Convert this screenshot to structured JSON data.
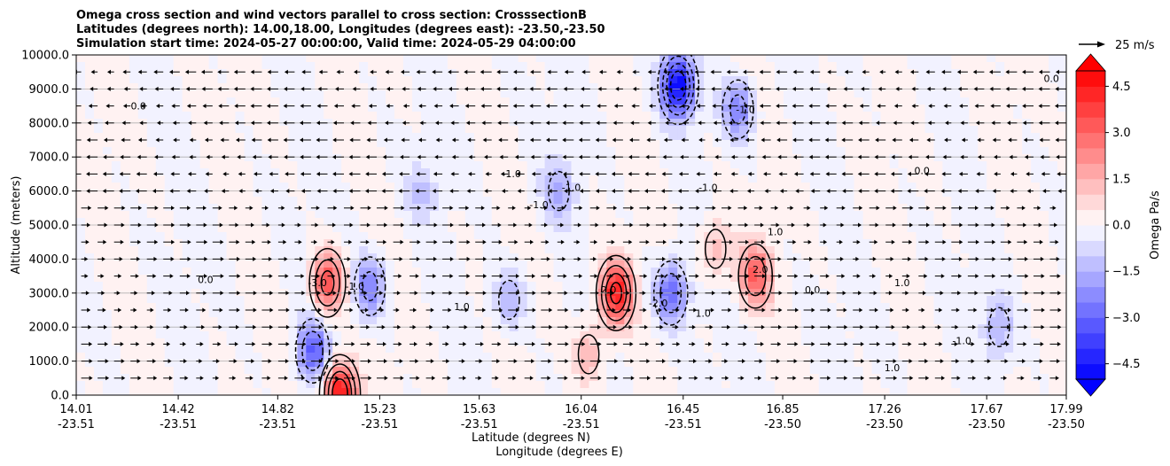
{
  "chart_data": {
    "type": "heatmap",
    "title": [
      "Omega cross section and wind vectors parallel to cross section: CrosssectionB",
      "Latitudes (degrees north): 14.00,18.00, Longitudes (degrees east): -23.50,-23.50",
      "Simulation start time: 2024-05-27 00:00:00, Valid time: 2024-05-29 04:00:00"
    ],
    "xlabel": "Latitude (degrees N)",
    "xlabel2": "Longitude (degrees E)",
    "ylabel": "Altitude (meters)",
    "xlim": [
      14.01,
      17.99
    ],
    "ylim": [
      0,
      10000
    ],
    "grid": "horizontal",
    "x_ticks": [
      {
        "lat": "14.01",
        "lon": "-23.51",
        "value": 14.01
      },
      {
        "lat": "14.42",
        "lon": "-23.51",
        "value": 14.42
      },
      {
        "lat": "14.82",
        "lon": "-23.51",
        "value": 14.82
      },
      {
        "lat": "15.23",
        "lon": "-23.51",
        "value": 15.23
      },
      {
        "lat": "15.63",
        "lon": "-23.51",
        "value": 15.63
      },
      {
        "lat": "16.04",
        "lon": "-23.51",
        "value": 16.04
      },
      {
        "lat": "16.45",
        "lon": "-23.51",
        "value": 16.45
      },
      {
        "lat": "16.85",
        "lon": "-23.50",
        "value": 16.85
      },
      {
        "lat": "17.26",
        "lon": "-23.50",
        "value": 17.26
      },
      {
        "lat": "17.67",
        "lon": "-23.50",
        "value": 17.67
      },
      {
        "lat": "17.99",
        "lon": "-23.50",
        "value": 17.99
      }
    ],
    "y_ticks": [
      {
        "label": "10000.0",
        "value": 10000
      },
      {
        "label": "9000.0",
        "value": 9000
      },
      {
        "label": "8000.0",
        "value": 8000
      },
      {
        "label": "7000.0",
        "value": 7000
      },
      {
        "label": "6000.0",
        "value": 6000
      },
      {
        "label": "5000.0",
        "value": 5000
      },
      {
        "label": "4000.0",
        "value": 4000
      },
      {
        "label": "3000.0",
        "value": 3000
      },
      {
        "label": "2000.0",
        "value": 2000
      },
      {
        "label": "1000.0",
        "value": 1000
      },
      {
        "label": "0.0",
        "value": 0
      }
    ],
    "colorbar": {
      "label": "Omega Pa/s",
      "range": [
        -5,
        5
      ],
      "levels": 20,
      "low_color": "#0000ff",
      "high_color": "#ff0000",
      "mid_color": "#ffffff",
      "ticks": [
        {
          "label": "4.5",
          "value": 4.5
        },
        {
          "label": "3.0",
          "value": 3.0
        },
        {
          "label": "1.5",
          "value": 1.5
        },
        {
          "label": "0.0",
          "value": 0.0
        },
        {
          "label": "−1.5",
          "value": -1.5
        },
        {
          "label": "−3.0",
          "value": -3.0
        },
        {
          "label": "−4.5",
          "value": -4.5
        }
      ]
    },
    "vector_key": {
      "label": "25 m/s",
      "value": 25
    },
    "features": [
      {
        "lat": 15.02,
        "alt": 3300,
        "omega": 3.5
      },
      {
        "lat": 14.96,
        "alt": 1300,
        "omega": -3.0
      },
      {
        "lat": 15.19,
        "alt": 3200,
        "omega": -2.5
      },
      {
        "lat": 15.07,
        "alt": 50,
        "omega": 5.0
      },
      {
        "lat": 15.75,
        "alt": 2800,
        "omega": -1.5
      },
      {
        "lat": 16.18,
        "alt": 3000,
        "omega": 4.5
      },
      {
        "lat": 16.4,
        "alt": 3000,
        "omega": -3.0
      },
      {
        "lat": 16.43,
        "alt": 9100,
        "omega": -5.0
      },
      {
        "lat": 16.67,
        "alt": 8400,
        "omega": -2.5
      },
      {
        "lat": 16.74,
        "alt": 3500,
        "omega": 3.0
      },
      {
        "lat": 15.95,
        "alt": 6000,
        "omega": -1.5
      },
      {
        "lat": 15.4,
        "alt": 6000,
        "omega": -1.0
      },
      {
        "lat": 17.72,
        "alt": 2000,
        "omega": -1.5
      },
      {
        "lat": 16.07,
        "alt": 1200,
        "omega": 1.5
      },
      {
        "lat": 16.58,
        "alt": 4300,
        "omega": 1.5
      }
    ],
    "contour_labels": [
      {
        "text": "0.0",
        "lat": 14.26,
        "alt": 8400
      },
      {
        "text": "0.0",
        "lat": 14.53,
        "alt": 3300
      },
      {
        "text": "-3.0",
        "lat": 14.98,
        "alt": 3200
      },
      {
        "text": "-1.0",
        "lat": 15.13,
        "alt": 3100
      },
      {
        "text": "1.0",
        "lat": 15.56,
        "alt": 2500
      },
      {
        "text": "-1.0",
        "lat": 15.76,
        "alt": 6400
      },
      {
        "text": "-1.0",
        "lat": 15.87,
        "alt": 5500
      },
      {
        "text": "-1.0",
        "lat": 16.0,
        "alt": 6000
      },
      {
        "text": "2.0",
        "lat": 16.15,
        "alt": 3000
      },
      {
        "text": "-2.0",
        "lat": 16.35,
        "alt": 2600
      },
      {
        "text": "1.0",
        "lat": 16.53,
        "alt": 2300
      },
      {
        "text": "-1.0",
        "lat": 16.55,
        "alt": 6000
      },
      {
        "text": "-1.0",
        "lat": 16.7,
        "alt": 8300
      },
      {
        "text": "2.0",
        "lat": 16.76,
        "alt": 3600
      },
      {
        "text": "1.0",
        "lat": 16.82,
        "alt": 4700
      },
      {
        "text": "0.0",
        "lat": 16.97,
        "alt": 3000
      },
      {
        "text": "1.0",
        "lat": 17.33,
        "alt": 3200
      },
      {
        "text": "1.0",
        "lat": 17.29,
        "alt": 700
      },
      {
        "text": "-1.0",
        "lat": 17.57,
        "alt": 1500
      },
      {
        "text": "0.0",
        "lat": 17.41,
        "alt": 6500
      },
      {
        "text": "0.0",
        "lat": 17.93,
        "alt": 9200
      }
    ]
  }
}
